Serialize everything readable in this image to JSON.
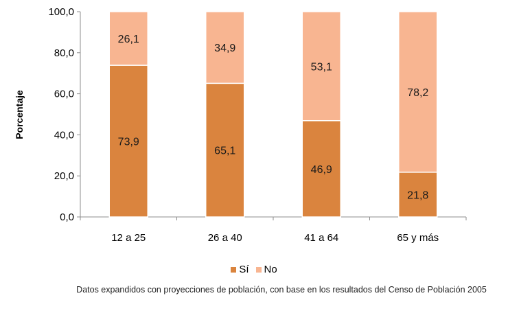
{
  "chart_data": {
    "type": "bar",
    "stacked": true,
    "categories": [
      "12 a 25",
      "26 a 40",
      "41 a 64",
      "65 y más"
    ],
    "series": [
      {
        "name": "Sí",
        "color": "#DA843E",
        "values": [
          73.9,
          65.1,
          46.9,
          21.8
        ],
        "labels": [
          "73,9",
          "65,1",
          "46,9",
          "21,8"
        ]
      },
      {
        "name": "No",
        "color": "#F8B591",
        "values": [
          26.1,
          34.9,
          53.1,
          78.2
        ],
        "labels": [
          "26,1",
          "34,9",
          "53,1",
          "78,2"
        ]
      }
    ],
    "ylabel": "Porcentaje",
    "xlabel": "",
    "ylim": [
      0,
      100
    ],
    "yticks": [
      0,
      20,
      40,
      60,
      80,
      100
    ],
    "ytick_labels": [
      "0,0",
      "20,0",
      "40,0",
      "60,0",
      "80,0",
      "100,0"
    ],
    "legend_position": "bottom",
    "grid": false
  },
  "footnote": "Datos expandidos con proyecciones de población, con base en los resultados del Censo de Población  2005"
}
